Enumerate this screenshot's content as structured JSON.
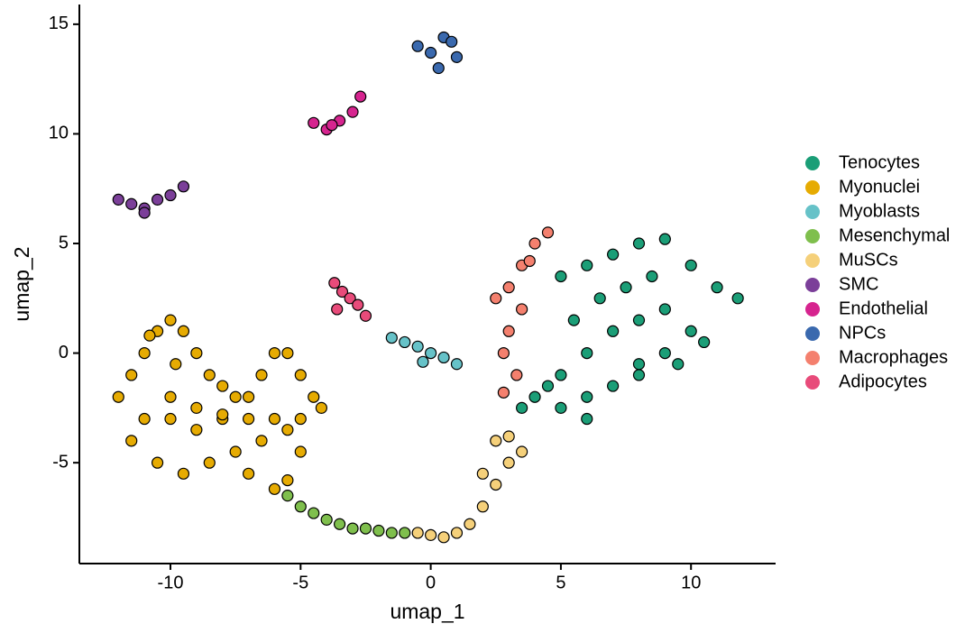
{
  "chart_data": {
    "type": "scatter",
    "x_label": "umap_1",
    "y_label": "umap_2",
    "xlim": [
      -13.5,
      13.25
    ],
    "ylim": [
      -9.6,
      15.9
    ],
    "xticks": [
      -10,
      -5,
      0,
      5,
      10
    ],
    "yticks": [
      -5,
      0,
      5,
      10,
      15
    ],
    "legend": "right",
    "series": [
      {
        "name": "Tenocytes",
        "color": "#1b9e77",
        "x": [
          5,
          6,
          7,
          8,
          9,
          10,
          11,
          11.8,
          9,
          8,
          7,
          6,
          5,
          4,
          5,
          6,
          7,
          8,
          9,
          10,
          7.5,
          8.5,
          6.5,
          9.5,
          10.5,
          5.5,
          4.5,
          3.5,
          6,
          8
        ],
        "values": [
          3.5,
          4,
          4.5,
          5,
          5.2,
          4,
          3,
          2.5,
          2,
          1.5,
          1,
          0,
          -1,
          -2,
          -2.5,
          -2,
          -1.5,
          -1,
          0,
          1,
          3,
          3.5,
          2.5,
          -0.5,
          0.5,
          1.5,
          -1.5,
          -2.5,
          -3,
          -0.5
        ]
      },
      {
        "name": "Myonuclei",
        "color": "#e6ab02",
        "x": [
          -12,
          -11.5,
          -11,
          -10.5,
          -10,
          -9.5,
          -9,
          -8.5,
          -8,
          -7.5,
          -7,
          -6.5,
          -6,
          -5.5,
          -5,
          -4.5,
          -11.5,
          -10.5,
          -9.5,
          -8.5,
          -7.5,
          -6.5,
          -5.5,
          -10,
          -9,
          -8,
          -7,
          -6,
          -5,
          -4.2,
          -11,
          -10,
          -9,
          -8,
          -7,
          -6,
          -5.5,
          -5,
          -9.8,
          -10.8
        ],
        "values": [
          -2,
          -1,
          0,
          1,
          1.5,
          1,
          0,
          -1,
          -1.5,
          -2,
          -2,
          -1,
          0,
          0,
          -1,
          -2,
          -4,
          -5,
          -5.5,
          -5,
          -4.5,
          -4,
          -3.5,
          -3,
          -3.5,
          -3,
          -3,
          -3,
          -3,
          -2.5,
          -3,
          -2,
          -2.5,
          -2.8,
          -5.5,
          -6.2,
          -5.8,
          -4.5,
          -0.5,
          0.8
        ]
      },
      {
        "name": "Myoblasts",
        "color": "#66c2c8",
        "x": [
          -1.5,
          -1,
          -0.5,
          0,
          0.5,
          1,
          -0.3
        ],
        "values": [
          0.7,
          0.5,
          0.3,
          0,
          -0.2,
          -0.5,
          -0.4
        ]
      },
      {
        "name": "Mesenchymal",
        "color": "#7fbf4d",
        "x": [
          -5.5,
          -5,
          -4.5,
          -4,
          -3.5,
          -3,
          -2.5,
          -2,
          -1.5,
          -1
        ],
        "values": [
          -6.5,
          -7,
          -7.3,
          -7.6,
          -7.8,
          -8,
          -8,
          -8.1,
          -8.2,
          -8.2
        ]
      },
      {
        "name": "MuSCs",
        "color": "#f5d07a",
        "x": [
          -0.5,
          0,
          0.5,
          1,
          1.5,
          2,
          2.5,
          3,
          2.5,
          3,
          3.5,
          2
        ],
        "values": [
          -8.2,
          -8.3,
          -8.4,
          -8.2,
          -7.8,
          -7,
          -6,
          -5,
          -4,
          -3.8,
          -4.5,
          -5.5
        ]
      },
      {
        "name": "SMC",
        "color": "#7b3f99",
        "x": [
          -12,
          -11.5,
          -11,
          -10.5,
          -10,
          -9.5,
          -11
        ],
        "values": [
          7,
          6.8,
          6.6,
          7,
          7.2,
          7.6,
          6.4
        ]
      },
      {
        "name": "Endothelial",
        "color": "#d6248f",
        "x": [
          -4.5,
          -4,
          -3.5,
          -3,
          -2.7,
          -3.8
        ],
        "values": [
          10.5,
          10.2,
          10.6,
          11,
          11.7,
          10.4
        ]
      },
      {
        "name": "NPCs",
        "color": "#3a69ae",
        "x": [
          -0.5,
          0,
          0.5,
          1,
          0.3,
          0.8
        ],
        "values": [
          14,
          13.7,
          14.4,
          13.5,
          13,
          14.2
        ]
      },
      {
        "name": "Macrophages",
        "color": "#f4806e",
        "x": [
          2.5,
          3,
          3.5,
          4,
          4.5,
          3.8,
          3.5,
          3,
          2.8,
          3.3,
          2.8
        ],
        "values": [
          2.5,
          3,
          4,
          5,
          5.5,
          4.2,
          2,
          1,
          0,
          -1,
          -1.8
        ]
      },
      {
        "name": "Adipocytes",
        "color": "#e84b7a",
        "x": [
          -3.7,
          -3.4,
          -3.1,
          -2.8,
          -2.5,
          -3.6
        ],
        "values": [
          3.2,
          2.8,
          2.5,
          2.2,
          1.7,
          2
        ]
      }
    ]
  }
}
